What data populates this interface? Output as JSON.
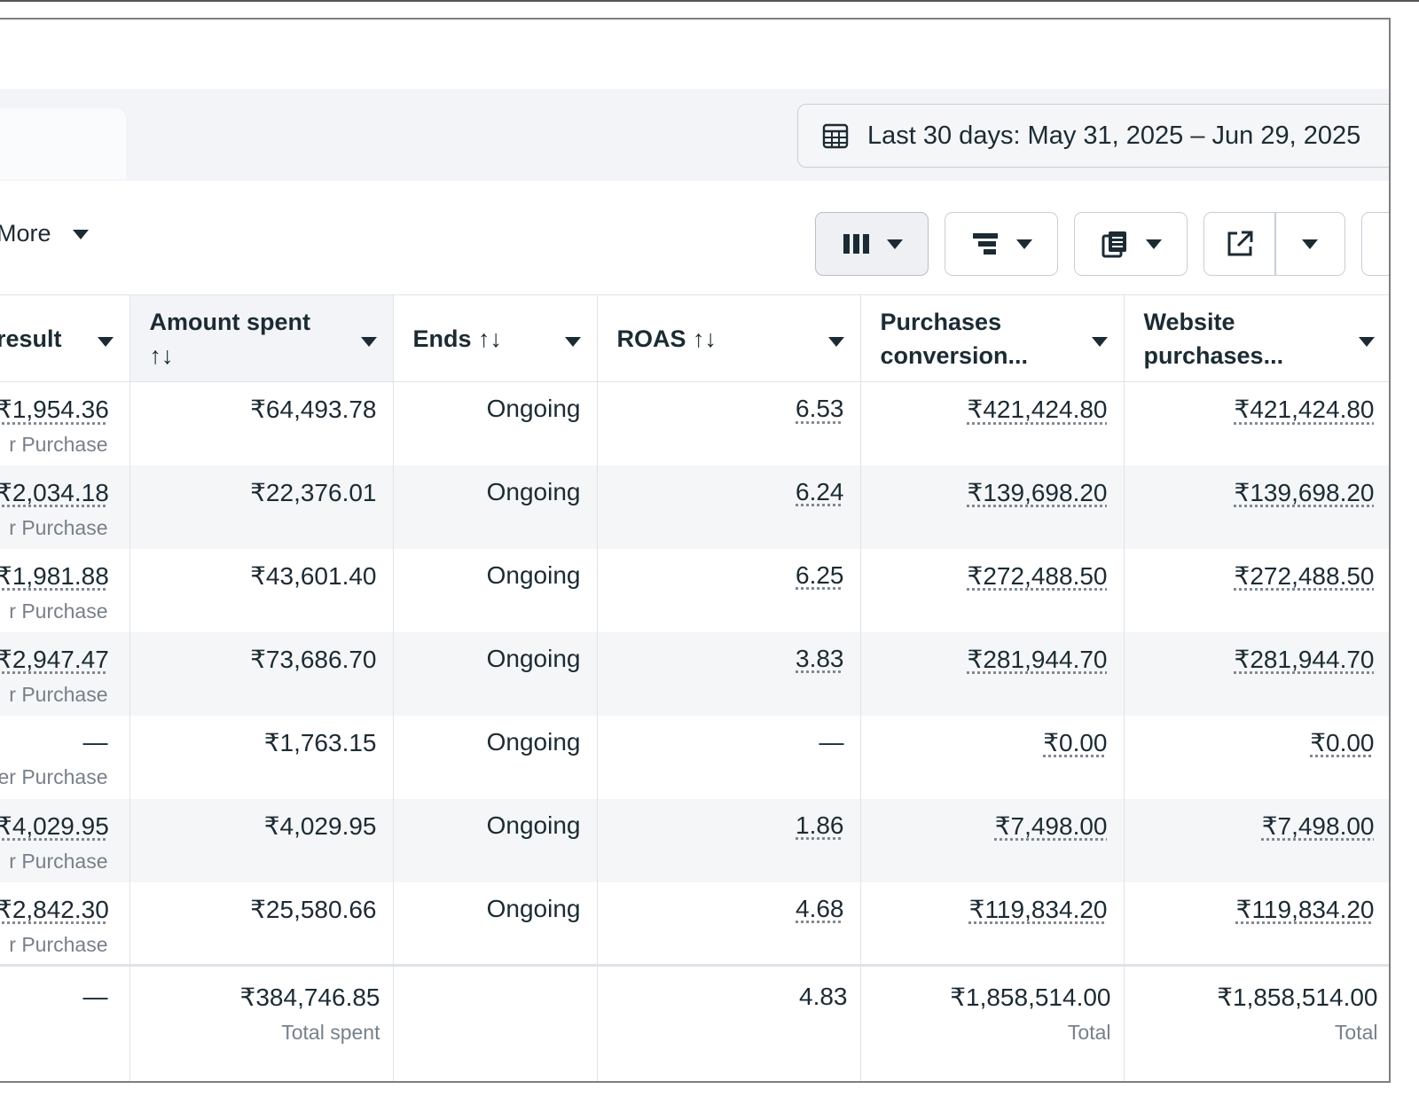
{
  "date_range": {
    "label": "Last 30 days: May 31, 2025 – Jun 29, 2025"
  },
  "toolbar": {
    "more_label": "More"
  },
  "table": {
    "headers": {
      "result": "result",
      "amount_spent": "Amount spent",
      "amount_spent_sort": "↑↓",
      "ends": "Ends ↑↓",
      "roas": "ROAS ↑↓",
      "purchases_conversion": "Purchases conversion...",
      "website_purchases": "Website purchases..."
    },
    "rows": [
      {
        "cost": "₹1,954.36",
        "cost_sub": "r Purchase",
        "spent": "₹64,493.78",
        "ends": "Ongoing",
        "roas": "6.53",
        "pcv": "₹421,424.80",
        "wpcv": "₹421,424.80"
      },
      {
        "cost": "₹2,034.18",
        "cost_sub": "r Purchase",
        "spent": "₹22,376.01",
        "ends": "Ongoing",
        "roas": "6.24",
        "pcv": "₹139,698.20",
        "wpcv": "₹139,698.20"
      },
      {
        "cost": "₹1,981.88",
        "cost_sub": "r Purchase",
        "spent": "₹43,601.40",
        "ends": "Ongoing",
        "roas": "6.25",
        "pcv": "₹272,488.50",
        "wpcv": "₹272,488.50"
      },
      {
        "cost": "₹2,947.47",
        "cost_sub": "r Purchase",
        "spent": "₹73,686.70",
        "ends": "Ongoing",
        "roas": "3.83",
        "pcv": "₹281,944.70",
        "wpcv": "₹281,944.70"
      },
      {
        "cost": "—",
        "cost_sub": "er Purchase",
        "spent": "₹1,763.15",
        "ends": "Ongoing",
        "roas": "—",
        "pcv": "₹0.00",
        "wpcv": "₹0.00"
      },
      {
        "cost": "₹4,029.95",
        "cost_sub": "r Purchase",
        "spent": "₹4,029.95",
        "ends": "Ongoing",
        "roas": "1.86",
        "pcv": "₹7,498.00",
        "wpcv": "₹7,498.00"
      },
      {
        "cost": "₹2,842.30",
        "cost_sub": "r Purchase",
        "spent": "₹25,580.66",
        "ends": "Ongoing",
        "roas": "4.68",
        "pcv": "₹119,834.20",
        "wpcv": "₹119,834.20"
      }
    ],
    "totals": {
      "cost": "—",
      "spent": "₹384,746.85",
      "spent_sub": "Total spent",
      "roas": "4.83",
      "pcv": "₹1,858,514.00",
      "pcv_sub": "Total",
      "wpcv": "₹1,858,514.00",
      "wpcv_sub": "Total"
    }
  },
  "icons": [
    "calendar-grid-icon",
    "columns-icon",
    "breakdown-icon",
    "reports-icon",
    "export-icon",
    "chevron-down-icon"
  ]
}
